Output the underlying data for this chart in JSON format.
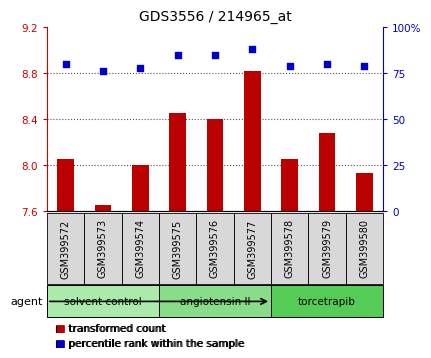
{
  "title": "GDS3556 / 214965_at",
  "samples": [
    "GSM399572",
    "GSM399573",
    "GSM399574",
    "GSM399575",
    "GSM399576",
    "GSM399577",
    "GSM399578",
    "GSM399579",
    "GSM399580"
  ],
  "red_values": [
    8.05,
    7.65,
    8.0,
    8.45,
    8.4,
    8.82,
    8.05,
    8.28,
    7.93
  ],
  "blue_values": [
    80,
    76,
    78,
    85,
    85,
    88,
    79,
    80,
    79
  ],
  "ylim_left": [
    7.6,
    9.2
  ],
  "ylim_right": [
    0,
    100
  ],
  "yticks_left": [
    7.6,
    8.0,
    8.4,
    8.8,
    9.2
  ],
  "yticks_right": [
    0,
    25,
    50,
    75,
    100
  ],
  "yticklabels_right": [
    "0",
    "25",
    "50",
    "75",
    "100%"
  ],
  "groups": [
    {
      "label": "solvent control",
      "indices": [
        0,
        1,
        2
      ],
      "color": "#aaeaaa"
    },
    {
      "label": "angiotensin II",
      "indices": [
        3,
        4,
        5
      ],
      "color": "#88dd88"
    },
    {
      "label": "torcetrapib",
      "indices": [
        6,
        7,
        8
      ],
      "color": "#55cc55"
    }
  ],
  "xtick_bg": "#d8d8d8",
  "bar_color": "#bb0000",
  "dot_color": "#0000cc",
  "bar_width": 0.45,
  "dotted_lines": [
    8.0,
    8.4,
    8.8
  ],
  "grid_color": "#555555",
  "agent_label": "agent",
  "legend_red": "transformed count",
  "legend_blue": "percentile rank within the sample",
  "left_axis_color": "#cc0000",
  "right_axis_color": "#0000cc",
  "tick_label_fontsize": 7.5,
  "sample_fontsize": 7
}
